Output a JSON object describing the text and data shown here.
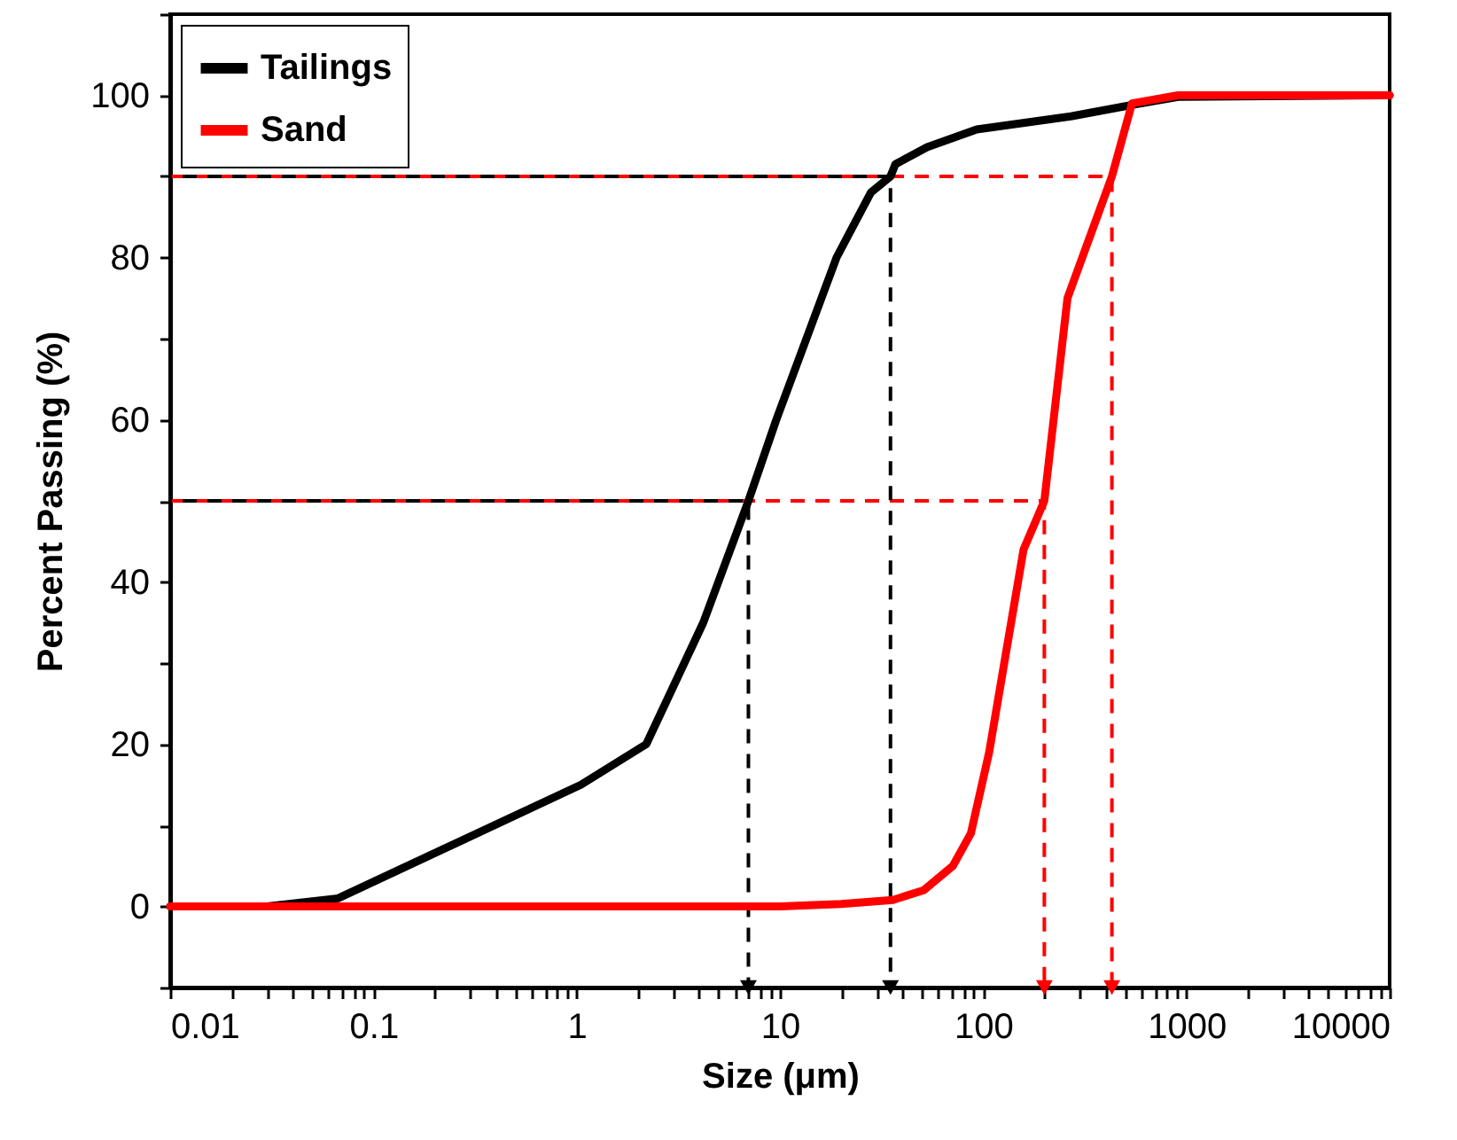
{
  "chart_data": {
    "type": "line",
    "xlabel": "Size (μm)",
    "ylabel": "Percent Passing (%)",
    "log": "x",
    "xlim": [
      0.01,
      10000
    ],
    "ylim": [
      -10,
      110
    ],
    "xticks": [
      0.01,
      {
        "value": 0.02,
        "label": null
      },
      {
        "value": 0.03,
        "label": null
      },
      {
        "value": 0.04,
        "label": null
      },
      {
        "value": 0.05,
        "label": null
      },
      {
        "value": 0.06,
        "label": null
      },
      {
        "value": 0.07,
        "label": null
      },
      {
        "value": 0.08,
        "label": null
      },
      {
        "value": 0.09,
        "label": null
      },
      0.1,
      {
        "value": 0.2,
        "label": null
      },
      {
        "value": 0.3,
        "label": null
      },
      {
        "value": 0.4,
        "label": null
      },
      {
        "value": 0.5,
        "label": null
      },
      {
        "value": 0.6,
        "label": null
      },
      {
        "value": 0.7,
        "label": null
      },
      {
        "value": 0.8,
        "label": null
      },
      {
        "value": 0.9,
        "label": null
      },
      1,
      {
        "value": 2,
        "label": null
      },
      {
        "value": 3,
        "label": null
      },
      {
        "value": 4,
        "label": null
      },
      {
        "value": 5,
        "label": null
      },
      {
        "value": 6,
        "label": null
      },
      {
        "value": 7,
        "label": null
      },
      {
        "value": 8,
        "label": null
      },
      {
        "value": 9,
        "label": null
      },
      10,
      {
        "value": 20,
        "label": null
      },
      {
        "value": 30,
        "label": null
      },
      {
        "value": 40,
        "label": null
      },
      {
        "value": 50,
        "label": null
      },
      {
        "value": 60,
        "label": null
      },
      {
        "value": 70,
        "label": null
      },
      {
        "value": 80,
        "label": null
      },
      {
        "value": 90,
        "label": null
      },
      100,
      {
        "value": 200,
        "label": null
      },
      {
        "value": 300,
        "label": null
      },
      {
        "value": 400,
        "label": null
      },
      {
        "value": 500,
        "label": null
      },
      {
        "value": 600,
        "label": null
      },
      {
        "value": 700,
        "label": null
      },
      {
        "value": 800,
        "label": null
      },
      {
        "value": 900,
        "label": null
      },
      1000,
      {
        "value": 2000,
        "label": null
      },
      {
        "value": 3000,
        "label": null
      },
      {
        "value": 4000,
        "label": null
      },
      {
        "value": 5000,
        "label": null
      },
      {
        "value": 6000,
        "label": null
      },
      {
        "value": 7000,
        "label": null
      },
      {
        "value": 8000,
        "label": null
      },
      {
        "value": 9000,
        "label": null
      },
      10000
    ],
    "yticks": [
      {
        "value": -10,
        "label": null
      },
      0,
      {
        "value": 10,
        "label": null
      },
      20,
      {
        "value": 30,
        "label": null
      },
      40,
      {
        "value": 50,
        "label": null
      },
      60,
      {
        "value": 70,
        "label": null
      },
      80,
      {
        "value": 90,
        "label": null
      },
      100,
      {
        "value": 110,
        "label": null
      }
    ],
    "grid": false,
    "legend": "top left",
    "marker": "none",
    "series": [
      {
        "color": "#ff0000",
        "line_style": "dashed",
        "x": [
          0.01,
          430,
          430
        ],
        "values": [
          90,
          90,
          -10
        ]
      },
      {
        "color": "#ff0000",
        "line_style": "dashed",
        "x": [
          0.01,
          200,
          200
        ],
        "values": [
          50,
          50,
          -10
        ]
      },
      {
        "color": "#000000",
        "line_style": "dashed",
        "x": [
          0.01,
          35,
          35
        ],
        "values": [
          90,
          90,
          -10
        ]
      },
      {
        "color": "#000000",
        "line_style": "dashed",
        "x": [
          0.01,
          7,
          7
        ],
        "values": [
          50,
          50,
          -10
        ]
      },
      {
        "name": "Tailings",
        "color": "#000000",
        "line_style": "solid",
        "x": [
          0.01,
          0.03,
          0.067,
          1.05,
          2.2,
          4.2,
          7,
          9.6,
          19,
          28,
          35,
          37,
          53,
          93,
          270,
          510,
          910,
          10000
        ],
        "values": [
          0,
          0,
          1,
          15,
          20,
          35,
          50,
          60,
          80,
          88,
          90,
          91.5,
          93.6,
          95.8,
          97.4,
          98.7,
          99.8,
          100
        ]
      },
      {
        "name": "Sand",
        "color": "#ff0000",
        "line_style": "solid",
        "x": [
          0.01,
          10,
          20,
          36,
          51,
          71,
          87,
          107,
          158,
          200,
          260,
          430,
          540,
          910,
          10000
        ],
        "values": [
          0,
          0,
          0.3,
          0.8,
          2,
          5,
          9,
          19,
          44,
          50,
          75,
          90,
          99,
          100,
          100
        ]
      }
    ]
  }
}
